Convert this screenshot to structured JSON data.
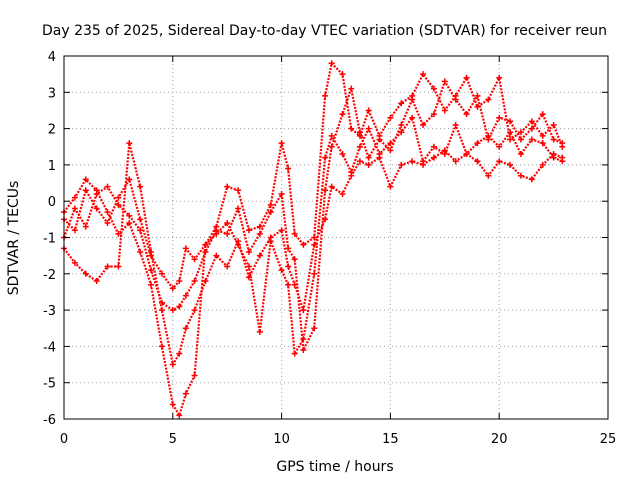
{
  "chart_data": {
    "type": "scatter",
    "title": "Day 235 of 2025, Sidereal Day-to-day VTEC variation (SDTVAR) for receiver reun",
    "xlabel": "GPS time / hours",
    "ylabel": "SDTVAR / TECUs",
    "xlim": [
      0,
      25
    ],
    "ylim": [
      -6,
      4
    ],
    "xticks": [
      "0",
      "5",
      "10",
      "15",
      "20",
      "25"
    ],
    "yticks": [
      "-6",
      "-5",
      "-4",
      "-3",
      "-2",
      "-1",
      "0",
      "1",
      "2",
      "3",
      "4"
    ],
    "grid": true,
    "marker": "plus",
    "color": "#ff0000",
    "series": [
      {
        "x": [
          0,
          0.5,
          1,
          1.5,
          2,
          2.5,
          3,
          3.5,
          4,
          4.5,
          5,
          5.3,
          5.6,
          6,
          6.5,
          7,
          7.5,
          8,
          8.5,
          9,
          9.5,
          10,
          10.3,
          10.6,
          11,
          11.5,
          12,
          12.3,
          12.8,
          13.2,
          13.6,
          14,
          14.5,
          15,
          15.5,
          16,
          16.5,
          17,
          17.5,
          18,
          18.5,
          19,
          19.5,
          20,
          20.5,
          21,
          21.5,
          22,
          22.5,
          22.9
        ],
        "y": [
          -0.5,
          -0.8,
          0.3,
          -0.2,
          -0.6,
          0.1,
          0.6,
          -0.5,
          -1.5,
          -2.0,
          -2.4,
          -2.2,
          -1.3,
          -1.6,
          -1.2,
          -0.7,
          0.4,
          0.3,
          -0.8,
          -0.7,
          -0.1,
          1.6,
          0.9,
          -0.9,
          -1.2,
          -1.0,
          2.9,
          3.8,
          3.5,
          2.0,
          1.8,
          2.5,
          1.8,
          2.3,
          2.7,
          2.9,
          3.5,
          3.1,
          2.5,
          2.9,
          3.4,
          2.6,
          2.8,
          3.4,
          1.7,
          1.9,
          2.2,
          1.8,
          2.1,
          1.5
        ]
      },
      {
        "x": [
          0,
          0.5,
          1,
          1.5,
          2,
          2.5,
          3,
          3.5,
          4,
          4.5,
          5,
          5.3,
          5.6,
          6,
          6.5,
          7,
          7.5,
          8,
          8.5,
          9,
          9.5,
          10,
          10.3,
          10.6,
          11,
          11.5,
          12,
          12.3,
          12.8,
          13.2,
          13.6,
          14,
          14.5,
          15,
          15.5,
          16,
          16.5,
          17,
          17.5,
          18,
          18.5,
          19,
          19.5,
          20,
          20.5,
          21,
          21.5,
          22,
          22.5,
          22.9
        ],
        "y": [
          -1.0,
          -0.2,
          -0.7,
          0.2,
          0.4,
          -0.1,
          -0.4,
          -0.8,
          -1.9,
          -2.8,
          -3.0,
          -2.9,
          -2.6,
          -2.2,
          -1.4,
          -0.8,
          -0.9,
          -0.2,
          -1.4,
          -0.9,
          -0.3,
          0.2,
          -1.3,
          -1.6,
          -4.1,
          -3.5,
          0.3,
          1.5,
          2.4,
          3.1,
          1.9,
          1.2,
          1.7,
          1.4,
          2.1,
          2.8,
          2.1,
          2.4,
          3.3,
          2.8,
          2.4,
          2.9,
          1.7,
          2.3,
          2.2,
          1.7,
          2.0,
          2.4,
          1.7,
          1.6
        ]
      },
      {
        "x": [
          0,
          0.5,
          1,
          1.5,
          2,
          2.5,
          3,
          3.5,
          4,
          4.5,
          5,
          5.3,
          5.6,
          6,
          6.5,
          7,
          7.5,
          8,
          8.5,
          9,
          9.5,
          10,
          10.3,
          10.6,
          11,
          11.5,
          12,
          12.3,
          12.8,
          13.2,
          13.6,
          14,
          14.5,
          15,
          15.5,
          16,
          16.5,
          17,
          17.5,
          18,
          18.5,
          19,
          19.5,
          20,
          20.5,
          21,
          21.5,
          22,
          22.5,
          22.9
        ],
        "y": [
          -0.3,
          0.1,
          0.6,
          0.3,
          -0.3,
          -0.9,
          -0.6,
          -1.4,
          -2.3,
          -4.0,
          -5.6,
          -5.9,
          -5.3,
          -4.8,
          -1.2,
          -0.9,
          -0.6,
          -1.2,
          -1.8,
          -3.6,
          -1.1,
          -1.9,
          -2.3,
          -4.2,
          -3.8,
          -2.0,
          1.2,
          1.8,
          1.3,
          0.8,
          1.5,
          2.0,
          1.3,
          1.6,
          1.9,
          2.3,
          1.1,
          1.5,
          1.3,
          2.1,
          1.3,
          1.6,
          1.8,
          1.5,
          1.9,
          1.3,
          1.7,
          1.6,
          1.2,
          1.1
        ]
      },
      {
        "x": [
          0,
          0.5,
          1,
          1.5,
          2,
          2.5,
          3,
          3.5,
          4,
          4.5,
          5,
          5.3,
          5.6,
          6,
          6.5,
          7,
          7.5,
          8,
          8.5,
          9,
          9.5,
          10,
          10.3,
          10.6,
          11,
          11.5,
          12,
          12.3,
          12.8,
          13.2,
          13.6,
          14,
          14.5,
          15,
          15.5,
          16,
          16.5,
          17,
          17.5,
          18,
          18.5,
          19,
          19.5,
          20,
          20.5,
          21,
          21.5,
          22,
          22.5,
          22.9
        ],
        "y": [
          -1.3,
          -1.7,
          -2.0,
          -2.2,
          -1.8,
          -1.8,
          1.6,
          0.4,
          -1.4,
          -3.0,
          -4.5,
          -4.2,
          -3.5,
          -3.0,
          -2.2,
          -1.5,
          -1.8,
          -1.1,
          -2.1,
          -1.5,
          -1.0,
          -0.8,
          -1.8,
          -2.3,
          -3.0,
          -1.2,
          -0.5,
          0.4,
          0.2,
          0.7,
          1.1,
          1.0,
          1.2,
          0.4,
          1.0,
          1.1,
          1.0,
          1.2,
          1.4,
          1.1,
          1.3,
          1.1,
          0.7,
          1.1,
          1.0,
          0.7,
          0.6,
          1.0,
          1.3,
          1.2
        ]
      }
    ]
  }
}
